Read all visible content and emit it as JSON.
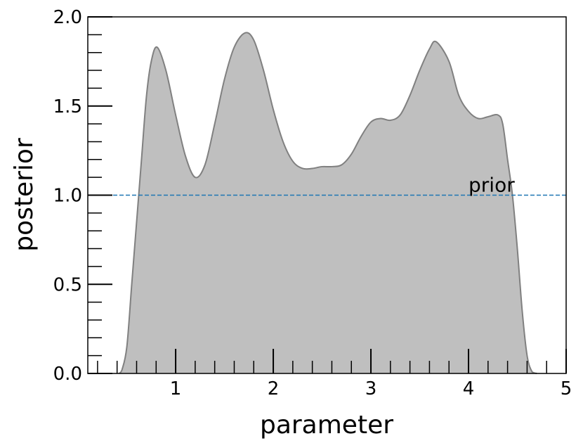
{
  "chart_data": {
    "type": "area",
    "xlabel": "parameter",
    "ylabel": "posterior",
    "x": [
      0.42,
      0.45,
      0.5,
      0.55,
      0.6,
      0.65,
      0.7,
      0.75,
      0.81,
      0.9,
      1.0,
      1.1,
      1.2,
      1.3,
      1.4,
      1.5,
      1.6,
      1.71,
      1.8,
      1.9,
      2.0,
      2.1,
      2.2,
      2.3,
      2.4,
      2.5,
      2.6,
      2.7,
      2.8,
      2.9,
      3.0,
      3.1,
      3.2,
      3.3,
      3.4,
      3.5,
      3.6,
      3.67,
      3.8,
      3.9,
      4.0,
      4.1,
      4.2,
      4.3,
      4.35,
      4.4,
      4.45,
      4.5,
      4.55,
      4.6,
      4.65,
      4.7
    ],
    "values": [
      0,
      0.02,
      0.15,
      0.5,
      0.85,
      1.2,
      1.55,
      1.75,
      1.83,
      1.7,
      1.45,
      1.22,
      1.1,
      1.17,
      1.4,
      1.65,
      1.83,
      1.91,
      1.87,
      1.7,
      1.48,
      1.3,
      1.19,
      1.15,
      1.15,
      1.16,
      1.16,
      1.17,
      1.23,
      1.33,
      1.41,
      1.43,
      1.42,
      1.45,
      1.56,
      1.7,
      1.82,
      1.86,
      1.75,
      1.56,
      1.47,
      1.43,
      1.44,
      1.45,
      1.4,
      1.2,
      1.0,
      0.7,
      0.35,
      0.1,
      0.01,
      0
    ],
    "color": "#bfbfbf",
    "edge_color": "#808080",
    "hline": {
      "value": 1.0,
      "label": "prior",
      "label_x": 4.0,
      "color": "#1f77b4"
    },
    "xlim": [
      0.1,
      5
    ],
    "ylim": [
      0,
      2
    ],
    "xticks": [
      1,
      2,
      3,
      4,
      5
    ],
    "yticks": [
      {
        "value": 0,
        "label": "0.0"
      },
      {
        "value": 0.5,
        "label": "0.5"
      },
      {
        "value": 1,
        "label": "1.0"
      },
      {
        "value": 1.5,
        "label": "1.5"
      },
      {
        "value": 2,
        "label": "2.0"
      }
    ],
    "xminorticks": [
      0.2,
      0.4,
      0.6,
      0.8,
      1.2,
      1.4,
      1.6,
      1.8,
      2.2,
      2.4,
      2.6,
      2.8,
      3.2,
      3.4,
      3.6,
      3.8,
      4.2,
      4.4,
      4.6,
      4.8
    ],
    "yminorticks": [
      0.1,
      0.2,
      0.3,
      0.4,
      0.6,
      0.7,
      0.8,
      0.9,
      1.1,
      1.2,
      1.3,
      1.4,
      1.6,
      1.7,
      1.8,
      1.9
    ]
  }
}
